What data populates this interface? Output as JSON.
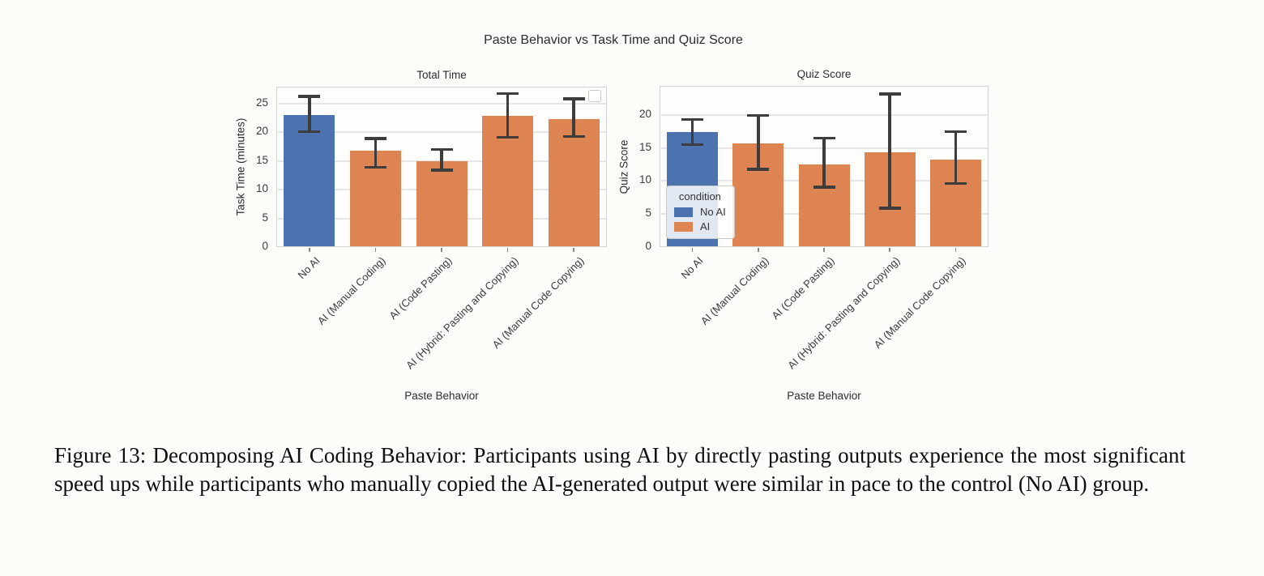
{
  "page": {
    "background": "#fcfdf9",
    "caption": "Figure 13: Decomposing AI Coding Behavior: Participants using AI by directly pasting outputs experience the most significant speed ups while participants who manually copied the AI-generated output were similar in pace to the control (No AI) group."
  },
  "figure_title": "Paste Behavior vs Task Time and Quiz Score",
  "colors": {
    "no_ai": "#4c72b0",
    "ai": "#dd8452",
    "error_bar": "#3d3d3d",
    "grid": "#e4e4e9",
    "plot_border": "#d2d2d8",
    "text": "#2e2e2e"
  },
  "legend": {
    "title": "condition",
    "entries": [
      {
        "label": "No AI",
        "color_key": "no_ai"
      },
      {
        "label": "AI",
        "color_key": "ai"
      }
    ]
  },
  "chart_data": [
    {
      "type": "bar",
      "title": "Total Time",
      "xlabel": "Paste Behavior",
      "ylabel": "Task Time (minutes)",
      "categories": [
        "No AI",
        "AI (Manual Coding)",
        "AI (Code Pasting)",
        "AI (Hybrid: Pasting and Copying)",
        "AI (Manual Code Copying)"
      ],
      "bar_conditions": [
        "no_ai",
        "ai",
        "ai",
        "ai",
        "ai"
      ],
      "values": [
        22.9,
        16.7,
        15.0,
        22.8,
        22.2
      ],
      "error_low": [
        20.1,
        13.9,
        13.4,
        19.1,
        19.2
      ],
      "error_high": [
        26.2,
        18.9,
        17.0,
        26.7,
        25.8
      ],
      "yticks": [
        0,
        5,
        10,
        15,
        20,
        25
      ],
      "ylim": [
        0,
        27.9
      ],
      "grid": true,
      "legend_style": "empty-box"
    },
    {
      "type": "bar",
      "title": "Quiz Score",
      "xlabel": "Paste Behavior",
      "ylabel": "Quiz Score",
      "categories": [
        "No AI",
        "AI (Manual Coding)",
        "AI (Code Pasting)",
        "AI (Hybrid: Pasting and Copying)",
        "AI (Manual Code Copying)"
      ],
      "bar_conditions": [
        "no_ai",
        "ai",
        "ai",
        "ai",
        "ai"
      ],
      "values": [
        17.4,
        15.7,
        12.5,
        14.3,
        13.3
      ],
      "error_low": [
        15.5,
        11.8,
        9.1,
        5.9,
        9.6
      ],
      "error_high": [
        19.3,
        19.9,
        16.5,
        23.2,
        17.5
      ],
      "yticks": [
        0,
        5,
        10,
        15,
        20
      ],
      "ylim": [
        0,
        24.4
      ],
      "grid": true,
      "legend_style": "condition-box"
    }
  ]
}
